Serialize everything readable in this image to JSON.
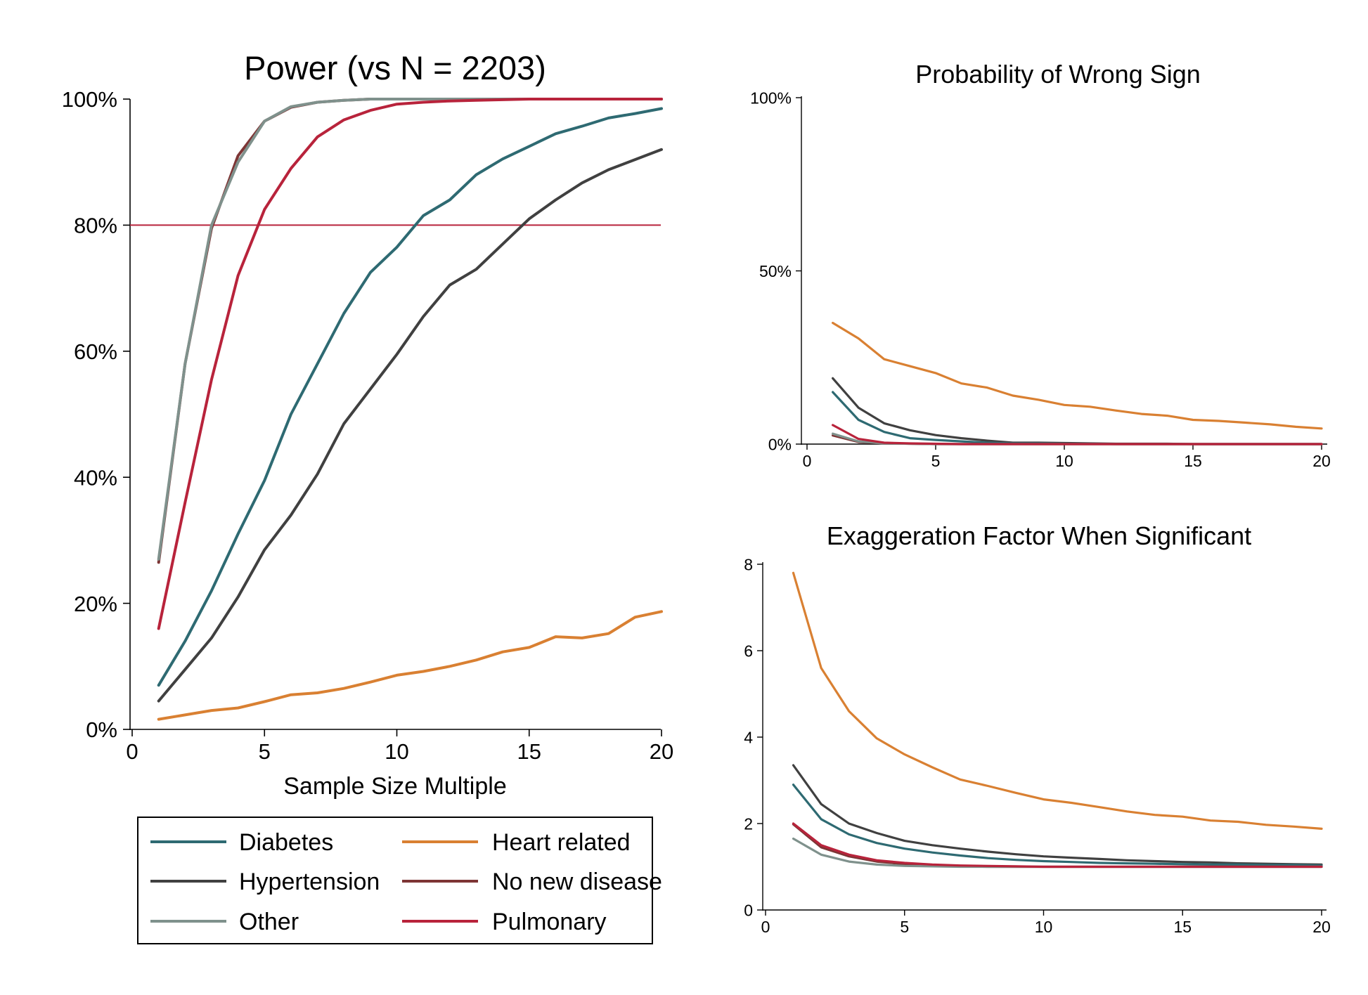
{
  "colors": {
    "Diabetes": "#2e6a72",
    "Hypertension": "#404040",
    "Other": "#7f918c",
    "Heart related": "#d98032",
    "No new disease": "#7d3535",
    "Pulmonary": "#b8233b",
    "reference_line": "#b8233b"
  },
  "legend": {
    "placement": "below left panel, two columns",
    "items": [
      "Diabetes",
      "Heart related",
      "Hypertension",
      "No new disease",
      "Other",
      "Pulmonary"
    ]
  },
  "chart_data": [
    {
      "type": "line",
      "title": "Power (vs N = 2203)",
      "xlabel": "Sample Size Multiple",
      "ylabel": "",
      "xlim": [
        0,
        20
      ],
      "ylim": [
        0,
        1
      ],
      "x_ticks": [
        0,
        5,
        10,
        15,
        20
      ],
      "y_ticks": [
        0,
        0.2,
        0.4,
        0.6,
        0.8,
        1.0
      ],
      "y_tick_labels": [
        "0%",
        "20%",
        "40%",
        "60%",
        "80%",
        "100%"
      ],
      "reference_line": 0.8,
      "grid": false,
      "x": [
        1,
        2,
        3,
        4,
        5,
        6,
        7,
        8,
        9,
        10,
        11,
        12,
        13,
        14,
        15,
        16,
        17,
        18,
        19,
        20
      ],
      "series": [
        {
          "name": "Diabetes",
          "values": [
            0.07,
            0.14,
            0.22,
            0.31,
            0.395,
            0.5,
            0.58,
            0.66,
            0.725,
            0.765,
            0.815,
            0.84,
            0.88,
            0.905,
            0.925,
            0.945,
            0.957,
            0.97,
            0.977,
            0.985
          ]
        },
        {
          "name": "Hypertension",
          "values": [
            0.045,
            0.095,
            0.145,
            0.21,
            0.285,
            0.34,
            0.405,
            0.485,
            0.54,
            0.595,
            0.655,
            0.705,
            0.73,
            0.77,
            0.81,
            0.84,
            0.867,
            0.888,
            0.904,
            0.92
          ]
        },
        {
          "name": "Other",
          "values": [
            0.27,
            0.58,
            0.8,
            0.9,
            0.965,
            0.988,
            0.995,
            0.998,
            1.0,
            1.0,
            1.0,
            1.0,
            1.0,
            1.0,
            1.0,
            1.0,
            1.0,
            1.0,
            1.0,
            1.0
          ]
        },
        {
          "name": "Heart related",
          "values": [
            0.016,
            0.023,
            0.03,
            0.034,
            0.044,
            0.055,
            0.058,
            0.065,
            0.075,
            0.086,
            0.092,
            0.1,
            0.11,
            0.123,
            0.13,
            0.147,
            0.145,
            0.152,
            0.178,
            0.187
          ]
        },
        {
          "name": "No new disease",
          "values": [
            0.265,
            0.58,
            0.795,
            0.91,
            0.965,
            0.987,
            0.995,
            0.998,
            1.0,
            1.0,
            1.0,
            1.0,
            1.0,
            1.0,
            1.0,
            1.0,
            1.0,
            1.0,
            1.0,
            1.0
          ]
        },
        {
          "name": "Pulmonary",
          "values": [
            0.16,
            0.36,
            0.555,
            0.72,
            0.825,
            0.89,
            0.94,
            0.967,
            0.982,
            0.992,
            0.995,
            0.997,
            0.998,
            0.999,
            1.0,
            1.0,
            1.0,
            1.0,
            1.0,
            1.0
          ]
        }
      ]
    },
    {
      "type": "line",
      "title": "Probability of Wrong Sign",
      "xlabel": "",
      "ylabel": "",
      "xlim": [
        0,
        20
      ],
      "ylim": [
        0,
        1
      ],
      "x_ticks": [
        0,
        5,
        10,
        15,
        20
      ],
      "y_ticks": [
        0,
        0.5,
        1.0
      ],
      "y_tick_labels": [
        "0%",
        "50%",
        "100%"
      ],
      "grid": false,
      "x": [
        1,
        2,
        3,
        4,
        5,
        6,
        7,
        8,
        9,
        10,
        11,
        12,
        13,
        14,
        15,
        16,
        17,
        18,
        19,
        20
      ],
      "series": [
        {
          "name": "Diabetes",
          "values": [
            0.15,
            0.07,
            0.035,
            0.017,
            0.012,
            0.008,
            0.004,
            0.002,
            0.002,
            0.001,
            0.001,
            0,
            0,
            0,
            0,
            0,
            0,
            0,
            0,
            0
          ]
        },
        {
          "name": "Hypertension",
          "values": [
            0.19,
            0.105,
            0.06,
            0.04,
            0.026,
            0.017,
            0.01,
            0.004,
            0.004,
            0.003,
            0.002,
            0.001,
            0.001,
            0.001,
            0,
            0,
            0,
            0,
            0,
            0
          ]
        },
        {
          "name": "Other",
          "values": [
            0.03,
            0.008,
            0.002,
            0.001,
            0,
            0,
            0,
            0,
            0,
            0,
            0,
            0,
            0,
            0,
            0,
            0,
            0,
            0,
            0,
            0
          ]
        },
        {
          "name": "Heart related",
          "values": [
            0.35,
            0.305,
            0.245,
            0.225,
            0.205,
            0.175,
            0.163,
            0.14,
            0.128,
            0.113,
            0.108,
            0.097,
            0.087,
            0.082,
            0.07,
            0.067,
            0.062,
            0.057,
            0.05,
            0.045
          ]
        },
        {
          "name": "No new disease",
          "values": [
            0.025,
            0.006,
            0.002,
            0.001,
            0,
            0,
            0,
            0,
            0,
            0,
            0,
            0,
            0,
            0,
            0,
            0,
            0,
            0,
            0,
            0
          ]
        },
        {
          "name": "Pulmonary",
          "values": [
            0.055,
            0.015,
            0.004,
            0.002,
            0.001,
            0,
            0,
            0,
            0,
            0,
            0,
            0,
            0,
            0,
            0,
            0,
            0,
            0,
            0,
            0
          ]
        }
      ]
    },
    {
      "type": "line",
      "title": "Exaggeration Factor When Significant",
      "xlabel": "",
      "ylabel": "",
      "xlim": [
        0,
        20
      ],
      "ylim": [
        0,
        8
      ],
      "x_ticks": [
        0,
        5,
        10,
        15,
        20
      ],
      "y_ticks": [
        0,
        2,
        4,
        6,
        8
      ],
      "y_tick_labels": [
        "0",
        "2",
        "4",
        "6",
        "8"
      ],
      "grid": false,
      "x": [
        1,
        2,
        3,
        4,
        5,
        6,
        7,
        8,
        9,
        10,
        11,
        12,
        13,
        14,
        15,
        16,
        17,
        18,
        19,
        20
      ],
      "series": [
        {
          "name": "Diabetes",
          "values": [
            2.9,
            2.1,
            1.75,
            1.55,
            1.42,
            1.33,
            1.26,
            1.2,
            1.16,
            1.13,
            1.11,
            1.09,
            1.08,
            1.07,
            1.06,
            1.05,
            1.05,
            1.04,
            1.04,
            1.03
          ]
        },
        {
          "name": "Hypertension",
          "values": [
            3.35,
            2.45,
            2.0,
            1.78,
            1.6,
            1.5,
            1.42,
            1.35,
            1.29,
            1.24,
            1.21,
            1.18,
            1.15,
            1.13,
            1.11,
            1.1,
            1.08,
            1.07,
            1.06,
            1.05
          ]
        },
        {
          "name": "Other",
          "values": [
            1.65,
            1.28,
            1.12,
            1.05,
            1.02,
            1.01,
            1.0,
            1.0,
            1.0,
            1.0,
            1.0,
            1.0,
            1.0,
            1.0,
            1.0,
            1.0,
            1.0,
            1.0,
            1.0,
            1.0
          ]
        },
        {
          "name": "Heart related",
          "values": [
            7.8,
            5.6,
            4.6,
            3.97,
            3.6,
            3.3,
            3.02,
            2.87,
            2.71,
            2.56,
            2.48,
            2.38,
            2.28,
            2.2,
            2.16,
            2.07,
            2.04,
            1.97,
            1.93,
            1.88
          ]
        },
        {
          "name": "No new disease",
          "values": [
            1.98,
            1.45,
            1.24,
            1.12,
            1.06,
            1.03,
            1.01,
            1.0,
            1.0,
            1.0,
            1.0,
            1.0,
            1.0,
            1.0,
            1.0,
            1.0,
            1.0,
            1.0,
            1.0,
            1.0
          ]
        },
        {
          "name": "Pulmonary",
          "values": [
            2.0,
            1.5,
            1.28,
            1.15,
            1.09,
            1.05,
            1.03,
            1.02,
            1.01,
            1.0,
            1.0,
            1.0,
            1.0,
            1.0,
            1.0,
            1.0,
            1.0,
            1.0,
            1.0,
            1.0
          ]
        }
      ]
    }
  ]
}
